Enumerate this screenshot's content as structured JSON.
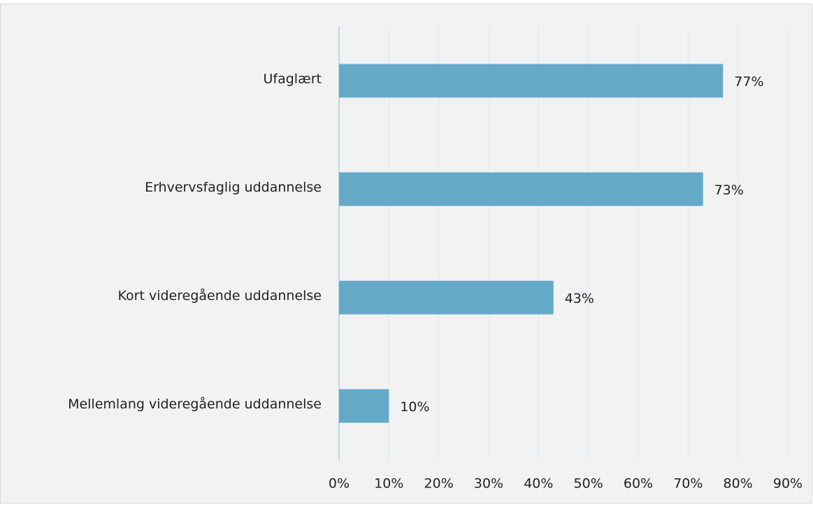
{
  "chart_data": {
    "type": "bar",
    "orientation": "horizontal",
    "categories": [
      "Ufaglært",
      "Erhvervsfaglig uddannelse",
      "Kort videregående uddannelse",
      "Mellemlang videregående uddannelse"
    ],
    "values": [
      77,
      73,
      43,
      10
    ],
    "value_labels": [
      "77%",
      "73%",
      "43%",
      "10%"
    ],
    "color": "#65a9c9",
    "xlim": [
      0,
      90
    ],
    "xticks": [
      {
        "value": 0,
        "label": "0%"
      },
      {
        "value": 10,
        "label": "10%"
      },
      {
        "value": 20,
        "label": "20%"
      },
      {
        "value": 30,
        "label": "30%"
      },
      {
        "value": 40,
        "label": "40%"
      },
      {
        "value": 50,
        "label": "50%"
      },
      {
        "value": 60,
        "label": "60%"
      },
      {
        "value": 70,
        "label": "70%"
      },
      {
        "value": 80,
        "label": "80%"
      },
      {
        "value": 90,
        "label": "90%"
      }
    ],
    "grid": true
  }
}
